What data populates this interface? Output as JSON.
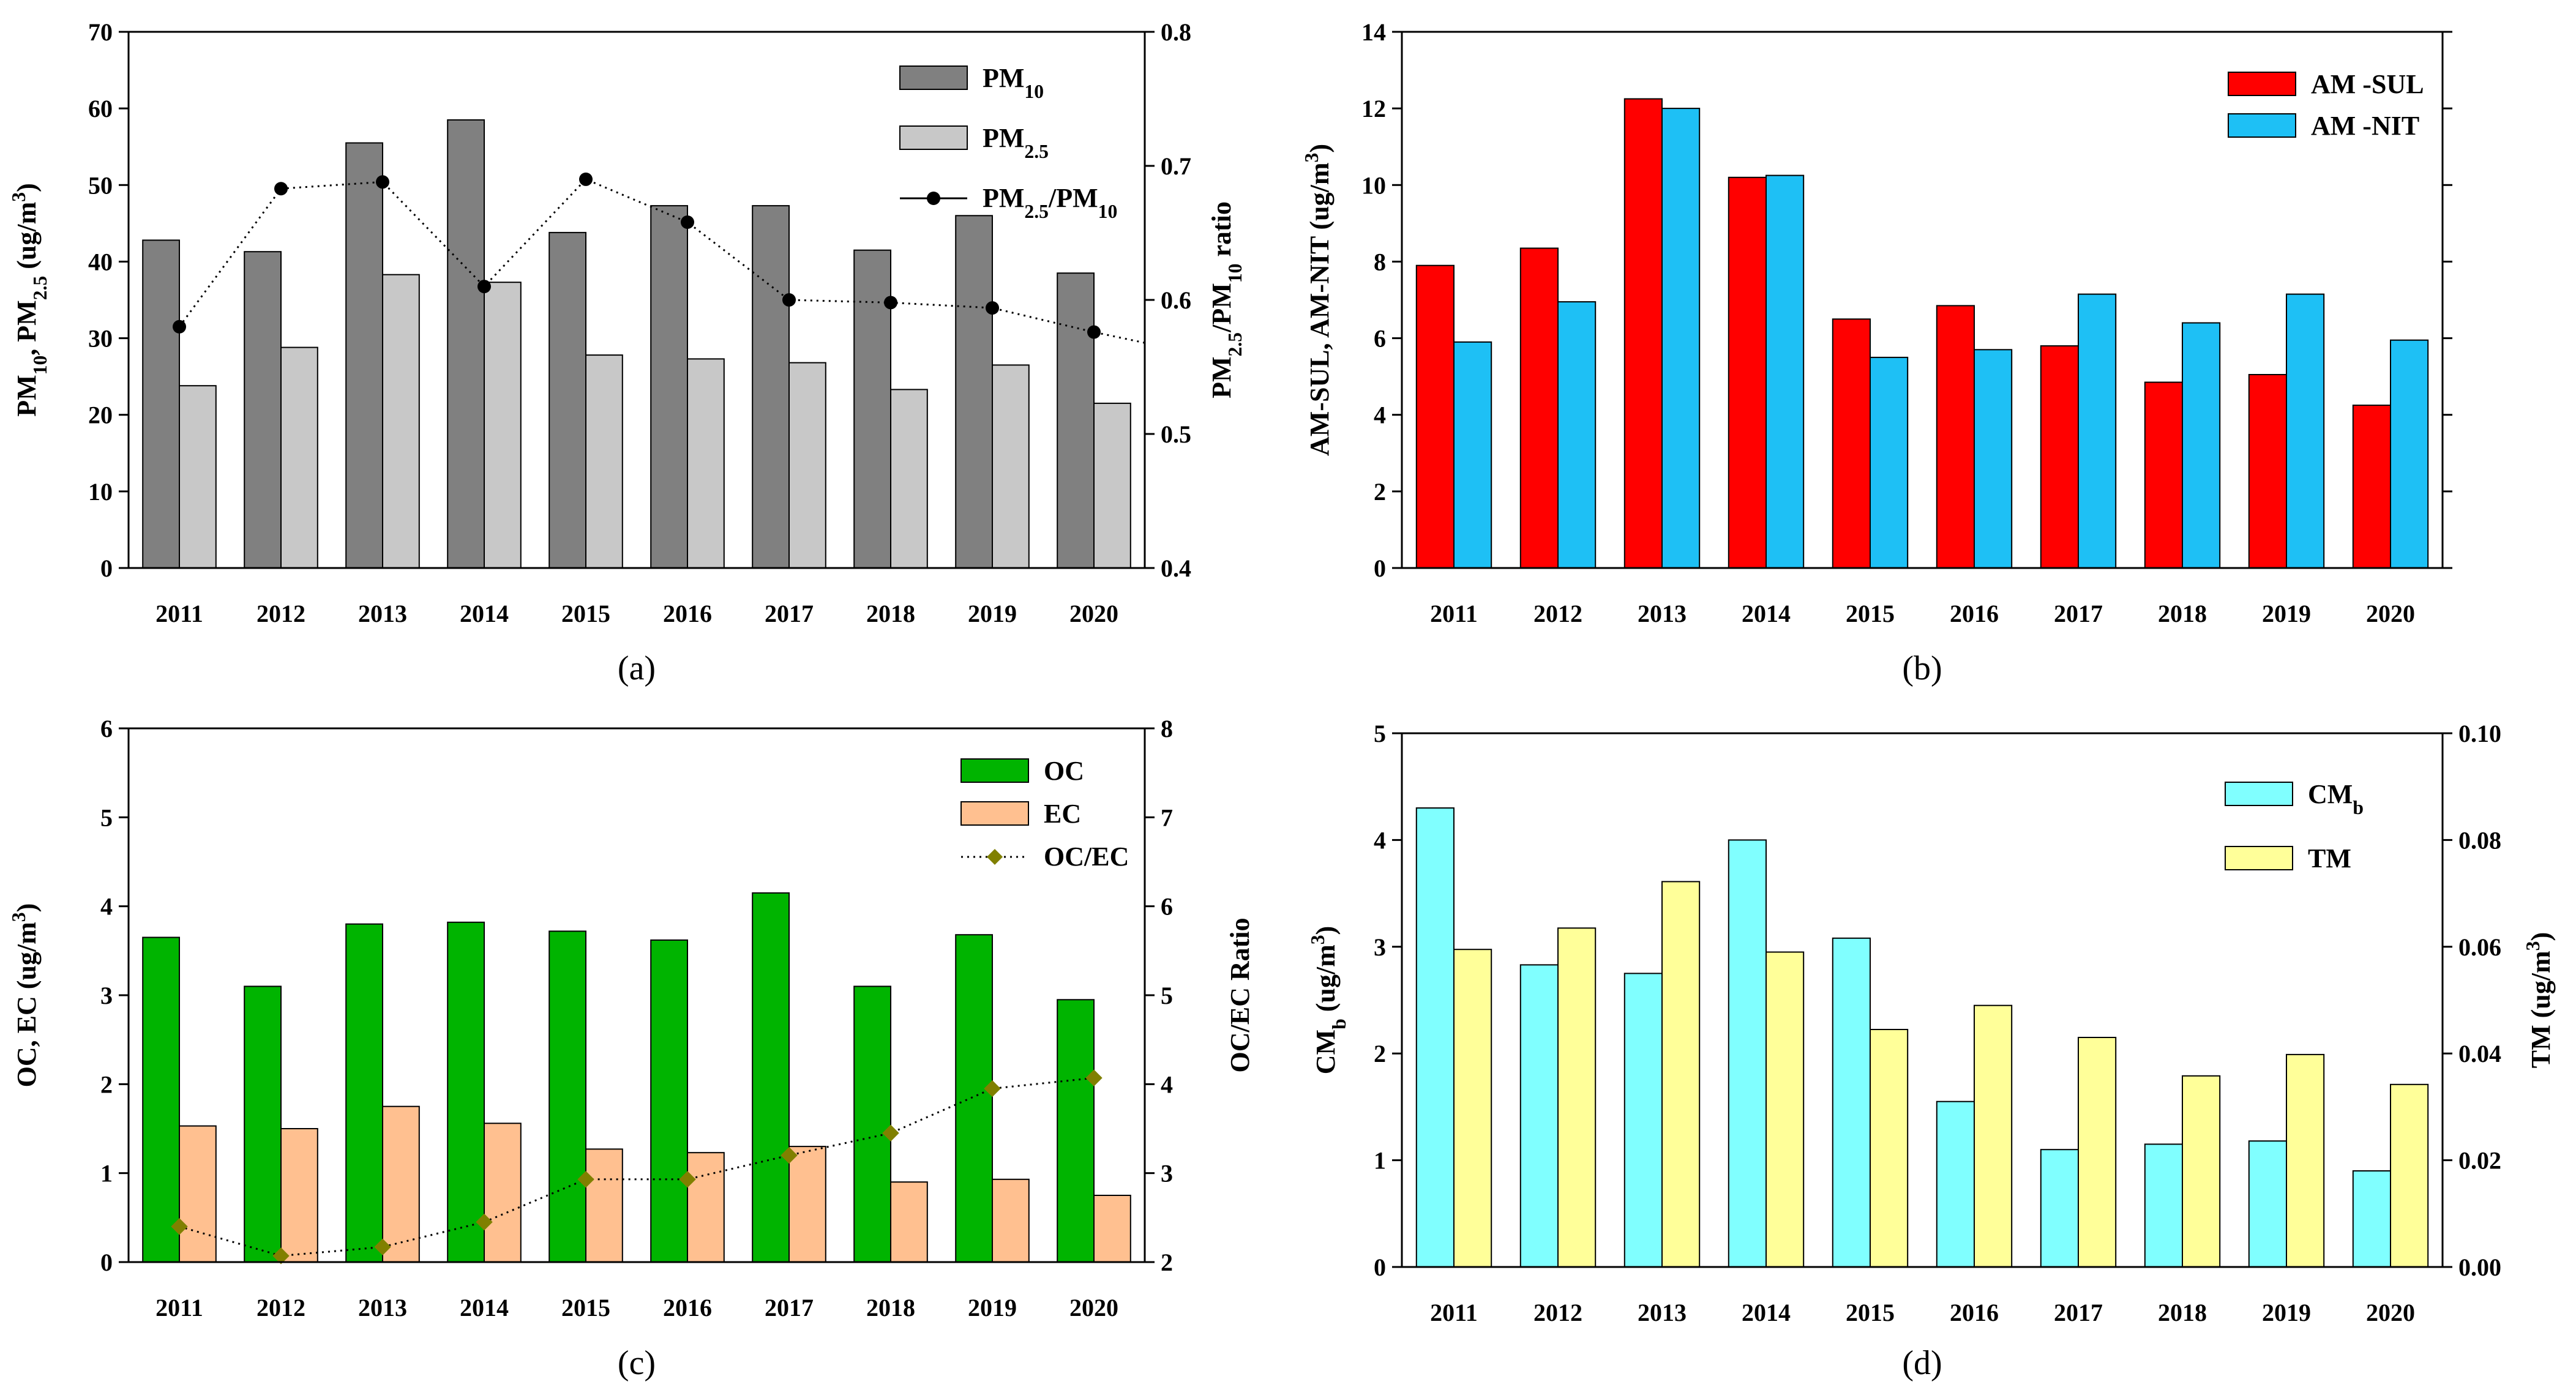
{
  "chart_data": [
    {
      "id": "a",
      "type": "bar",
      "caption": "(a)",
      "categories": [
        "2011",
        "2012",
        "2013",
        "2014",
        "2015",
        "2016",
        "2017",
        "2018",
        "2019",
        "2020"
      ],
      "ylabel": "PM10, PM2.5 (ug/m3)",
      "ylabel_parts": [
        {
          "t": "PM"
        },
        {
          "t": "10",
          "sub": true
        },
        {
          "t": ", PM"
        },
        {
          "t": "2.5",
          "sub": true
        },
        {
          "t": " (ug/m"
        },
        {
          "t": "3",
          "sup": true
        },
        {
          "t": ")"
        }
      ],
      "ylim": [
        0,
        70
      ],
      "yticks": [
        0,
        10,
        20,
        30,
        40,
        50,
        60,
        70
      ],
      "y2label": "PM2.5/PM10 ratio",
      "y2label_parts": [
        {
          "t": "PM"
        },
        {
          "t": "2.5",
          "sub": true
        },
        {
          "t": "/PM"
        },
        {
          "t": "10",
          "sub": true
        },
        {
          "t": " ratio"
        }
      ],
      "y2lim": [
        0.4,
        0.8
      ],
      "y2ticks": [
        0.4,
        0.5,
        0.6,
        0.7,
        0.8
      ],
      "bar_series": [
        {
          "name": "PM10",
          "name_parts": [
            {
              "t": "PM"
            },
            {
              "t": "10",
              "sub": true
            }
          ],
          "color": "#808080",
          "values": [
            42.8,
            41.3,
            55.5,
            58.5,
            43.8,
            47.3,
            47.3,
            41.5,
            46.0,
            38.5
          ]
        },
        {
          "name": "PM2.5",
          "name_parts": [
            {
              "t": "PM"
            },
            {
              "t": "2.5",
              "sub": true
            }
          ],
          "color": "#c8c8c8",
          "values": [
            23.8,
            28.8,
            38.3,
            37.3,
            27.8,
            27.3,
            26.8,
            23.3,
            26.5,
            21.5
          ]
        }
      ],
      "line_series": [
        {
          "name": "PM2.5/PM10",
          "name_parts": [
            {
              "t": "PM"
            },
            {
              "t": "2.5",
              "sub": true
            },
            {
              "t": "/PM"
            },
            {
              "t": "10",
              "sub": true
            }
          ],
          "color": "#000000",
          "marker": "circle",
          "axis": "y2",
          "values": [
            0.58,
            0.683,
            0.688,
            0.61,
            0.69,
            0.658,
            0.6,
            0.598,
            0.594,
            0.576
          ],
          "extends_to_edge": 0.568
        }
      ],
      "legend": "top-right"
    },
    {
      "id": "b",
      "type": "bar",
      "caption": "(b)",
      "categories": [
        "2011",
        "2012",
        "2013",
        "2014",
        "2015",
        "2016",
        "2017",
        "2018",
        "2019",
        "2020"
      ],
      "ylabel": "AM-SUL, AM-NIT (ug/m3)",
      "ylabel_parts": [
        {
          "t": "AM-SUL, AM-NIT  (ug/m"
        },
        {
          "t": "3",
          "sup": true
        },
        {
          "t": ")"
        }
      ],
      "ylim": [
        0,
        14
      ],
      "yticks": [
        0,
        2,
        4,
        6,
        8,
        10,
        12,
        14
      ],
      "bar_series": [
        {
          "name": "AM -SUL",
          "name_parts": [
            {
              "t": "AM -SUL"
            }
          ],
          "color": "#ff0000",
          "values": [
            7.9,
            8.35,
            12.25,
            10.2,
            6.5,
            6.85,
            5.8,
            4.85,
            5.05,
            4.25
          ]
        },
        {
          "name": "AM -NIT",
          "name_parts": [
            {
              "t": "AM -NIT"
            }
          ],
          "color": "#1ec0f5",
          "values": [
            5.9,
            6.95,
            12.0,
            10.25,
            5.5,
            5.7,
            7.15,
            6.4,
            7.15,
            5.95
          ]
        }
      ],
      "legend": "top-right"
    },
    {
      "id": "c",
      "type": "bar",
      "caption": "(c)",
      "categories": [
        "2011",
        "2012",
        "2013",
        "2014",
        "2015",
        "2016",
        "2017",
        "2018",
        "2019",
        "2020"
      ],
      "ylabel": "OC, EC (ug/m3)",
      "ylabel_parts": [
        {
          "t": "OC, EC  (ug/m"
        },
        {
          "t": "3",
          "sup": true
        },
        {
          "t": ")"
        }
      ],
      "ylim": [
        0,
        6
      ],
      "yticks": [
        0,
        1,
        2,
        3,
        4,
        5,
        6
      ],
      "y2label": "OC/EC Ratio",
      "y2label_parts": [
        {
          "t": "OC/EC Ratio"
        }
      ],
      "y2lim": [
        2,
        8
      ],
      "y2ticks": [
        2,
        3,
        4,
        5,
        6,
        7,
        8
      ],
      "bar_series": [
        {
          "name": "OC",
          "name_parts": [
            {
              "t": "OC"
            }
          ],
          "color": "#00b400",
          "values": [
            3.65,
            3.1,
            3.8,
            3.82,
            3.72,
            3.62,
            4.15,
            3.1,
            3.68,
            2.95
          ]
        },
        {
          "name": "EC",
          "name_parts": [
            {
              "t": "EC"
            }
          ],
          "color": "#ffc090",
          "values": [
            1.53,
            1.5,
            1.75,
            1.56,
            1.27,
            1.23,
            1.3,
            0.9,
            0.93,
            0.75
          ]
        }
      ],
      "line_series": [
        {
          "name": "OC/EC",
          "name_parts": [
            {
              "t": "OC/EC"
            }
          ],
          "color": "#808000",
          "marker": "diamond",
          "axis": "y2",
          "values": [
            2.4,
            2.07,
            2.17,
            2.45,
            2.93,
            2.93,
            3.2,
            3.45,
            3.95,
            4.07
          ]
        }
      ],
      "legend": "top-right"
    },
    {
      "id": "d",
      "type": "bar",
      "caption": "(d)",
      "categories": [
        "2011",
        "2012",
        "2013",
        "2014",
        "2015",
        "2016",
        "2017",
        "2018",
        "2019",
        "2020"
      ],
      "ylabel": "CMb (ug/m3)",
      "ylabel_parts": [
        {
          "t": "CM"
        },
        {
          "t": "b",
          "sub": true
        },
        {
          "t": " (ug/m"
        },
        {
          "t": "3",
          "sup": true
        },
        {
          "t": ")"
        }
      ],
      "ylim": [
        0,
        5
      ],
      "yticks": [
        0,
        1,
        2,
        3,
        4,
        5
      ],
      "y2label": "TM (ug/m3)",
      "y2label_parts": [
        {
          "t": "TM (ug/m"
        },
        {
          "t": "3",
          "sup": true
        },
        {
          "t": ")"
        }
      ],
      "y2lim": [
        0,
        0.1
      ],
      "y2ticks": [
        "0.00",
        "0.02",
        "0.04",
        "0.06",
        "0.08",
        "0.10"
      ],
      "bar_series": [
        {
          "name": "CMb",
          "name_parts": [
            {
              "t": "CM"
            },
            {
              "t": "b",
              "sub": true
            }
          ],
          "color": "#80ffff",
          "axis": "y",
          "values": [
            4.3,
            2.83,
            2.75,
            4.0,
            3.08,
            1.55,
            1.1,
            1.15,
            1.18,
            0.9
          ]
        },
        {
          "name": "TM",
          "name_parts": [
            {
              "t": "TM"
            }
          ],
          "color": "#ffff99",
          "axis": "y2",
          "values": [
            0.0595,
            0.0635,
            0.0722,
            0.059,
            0.0445,
            0.049,
            0.043,
            0.0358,
            0.0398,
            0.0342
          ]
        }
      ],
      "legend": "top-right"
    }
  ]
}
